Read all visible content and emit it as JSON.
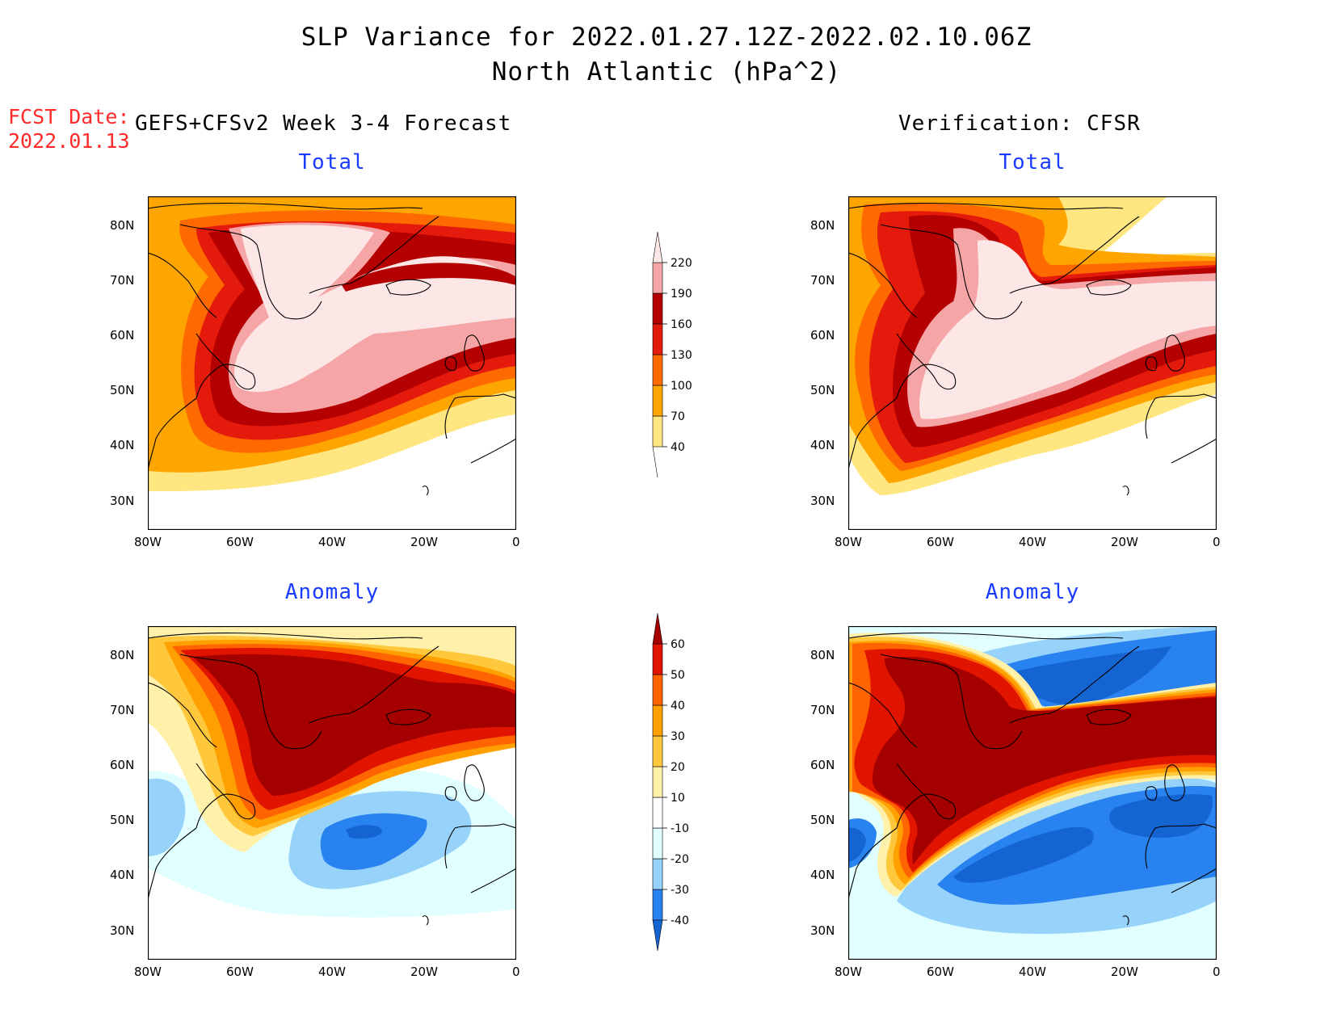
{
  "header": {
    "title_line1": "SLP Variance for 2022.01.27.12Z-2022.02.10.06Z",
    "title_line2": "North Atlantic (hPa^2)",
    "fcst_label": "FCST Date:",
    "fcst_date": "2022.01.13"
  },
  "columns": {
    "left": "GEFS+CFSv2 Week 3-4 Forecast",
    "right": "Verification: CFSR"
  },
  "panels": [
    {
      "id": "fcst-total",
      "title": "Total"
    },
    {
      "id": "verif-total",
      "title": "Total"
    },
    {
      "id": "fcst-anomaly",
      "title": "Anomaly"
    },
    {
      "id": "verif-anomaly",
      "title": "Anomaly"
    }
  ],
  "axes": {
    "lat_ticks": [
      "80N",
      "70N",
      "60N",
      "50N",
      "40N",
      "30N"
    ],
    "lon_ticks": [
      "80W",
      "60W",
      "40W",
      "20W",
      "0"
    ]
  },
  "colorbars": {
    "total": {
      "levels": [
        "40",
        "70",
        "100",
        "130",
        "160",
        "190",
        "220"
      ],
      "colors": [
        "#ffe680",
        "#ffa500",
        "#ff6a00",
        "#e31a0c",
        "#b40000",
        "#f5a5a5",
        "#fde6e6"
      ]
    },
    "anomaly": {
      "levels": [
        "-40",
        "-30",
        "-20",
        "-10",
        "10",
        "20",
        "30",
        "40",
        "50",
        "60"
      ],
      "colors": [
        "#1464d2",
        "#2882f0",
        "#96d2fa",
        "#e1ffff",
        "#ffffff",
        "#fff0aa",
        "#ffc83c",
        "#ffa000",
        "#ff6400",
        "#e11400",
        "#a50000"
      ]
    }
  }
}
